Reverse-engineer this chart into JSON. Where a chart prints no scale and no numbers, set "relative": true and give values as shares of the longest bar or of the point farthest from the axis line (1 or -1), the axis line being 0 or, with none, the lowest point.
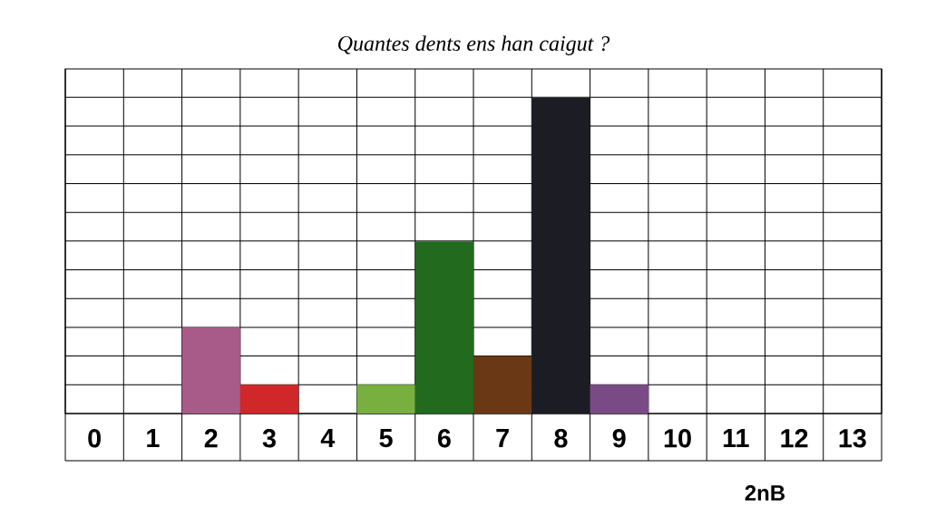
{
  "chart_data": {
    "type": "bar",
    "title": "Quantes dents ens han caigut ?",
    "categories": [
      "0",
      "1",
      "2",
      "3",
      "4",
      "5",
      "6",
      "7",
      "8",
      "9",
      "10",
      "11",
      "12",
      "13"
    ],
    "values": [
      0,
      0,
      0.273,
      0.091,
      0,
      0.091,
      0.545,
      0.182,
      1,
      0.091,
      0,
      0,
      0,
      0
    ],
    "colors": [
      null,
      null,
      "#a85a88",
      "#d02828",
      null,
      "#78b040",
      "#226a1e",
      "#6a3814",
      "#1c1c24",
      "#7a4a86",
      null,
      null,
      null,
      null
    ],
    "relative": true,
    "grid": true,
    "annotations": [
      "2nB"
    ]
  }
}
